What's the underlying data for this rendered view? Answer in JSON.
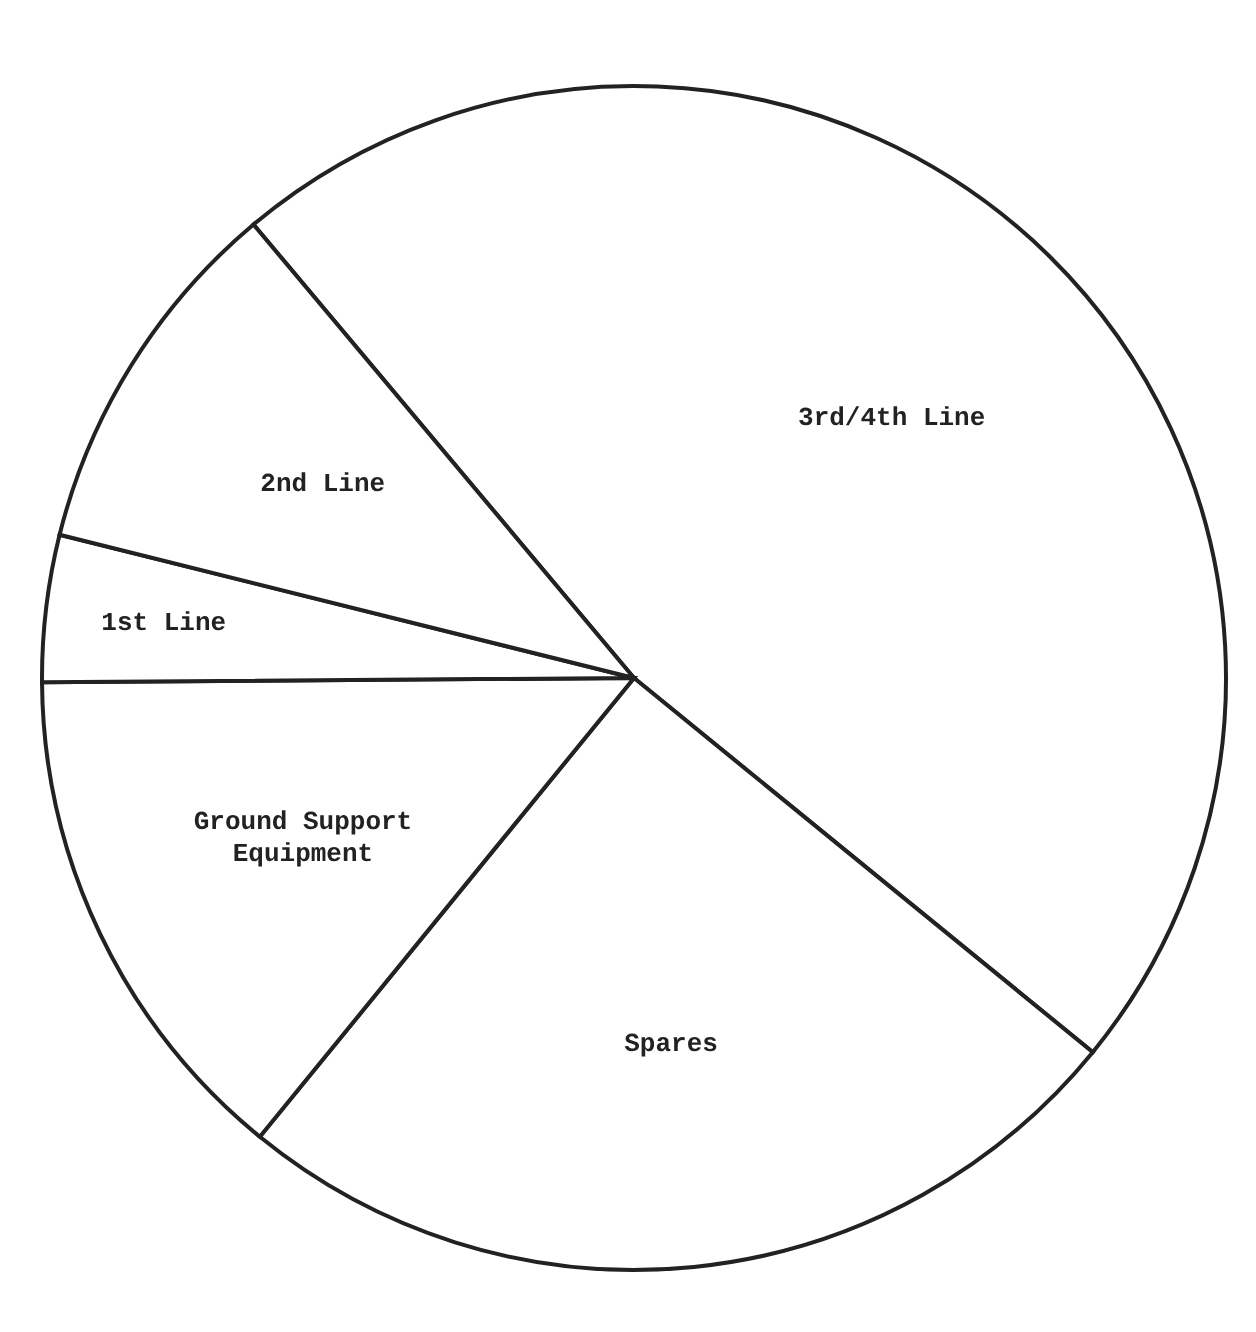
{
  "chart_data": {
    "type": "pie",
    "categories": [
      "3rd/4th Line",
      "Spares",
      "Ground Support Equipment",
      "1st Line",
      "2nd Line"
    ],
    "values": [
      47,
      25,
      14,
      4,
      10
    ],
    "colors": [
      "#ffffff",
      "#ffffff",
      "#ffffff",
      "#ffffff",
      "#ffffff"
    ]
  }
}
